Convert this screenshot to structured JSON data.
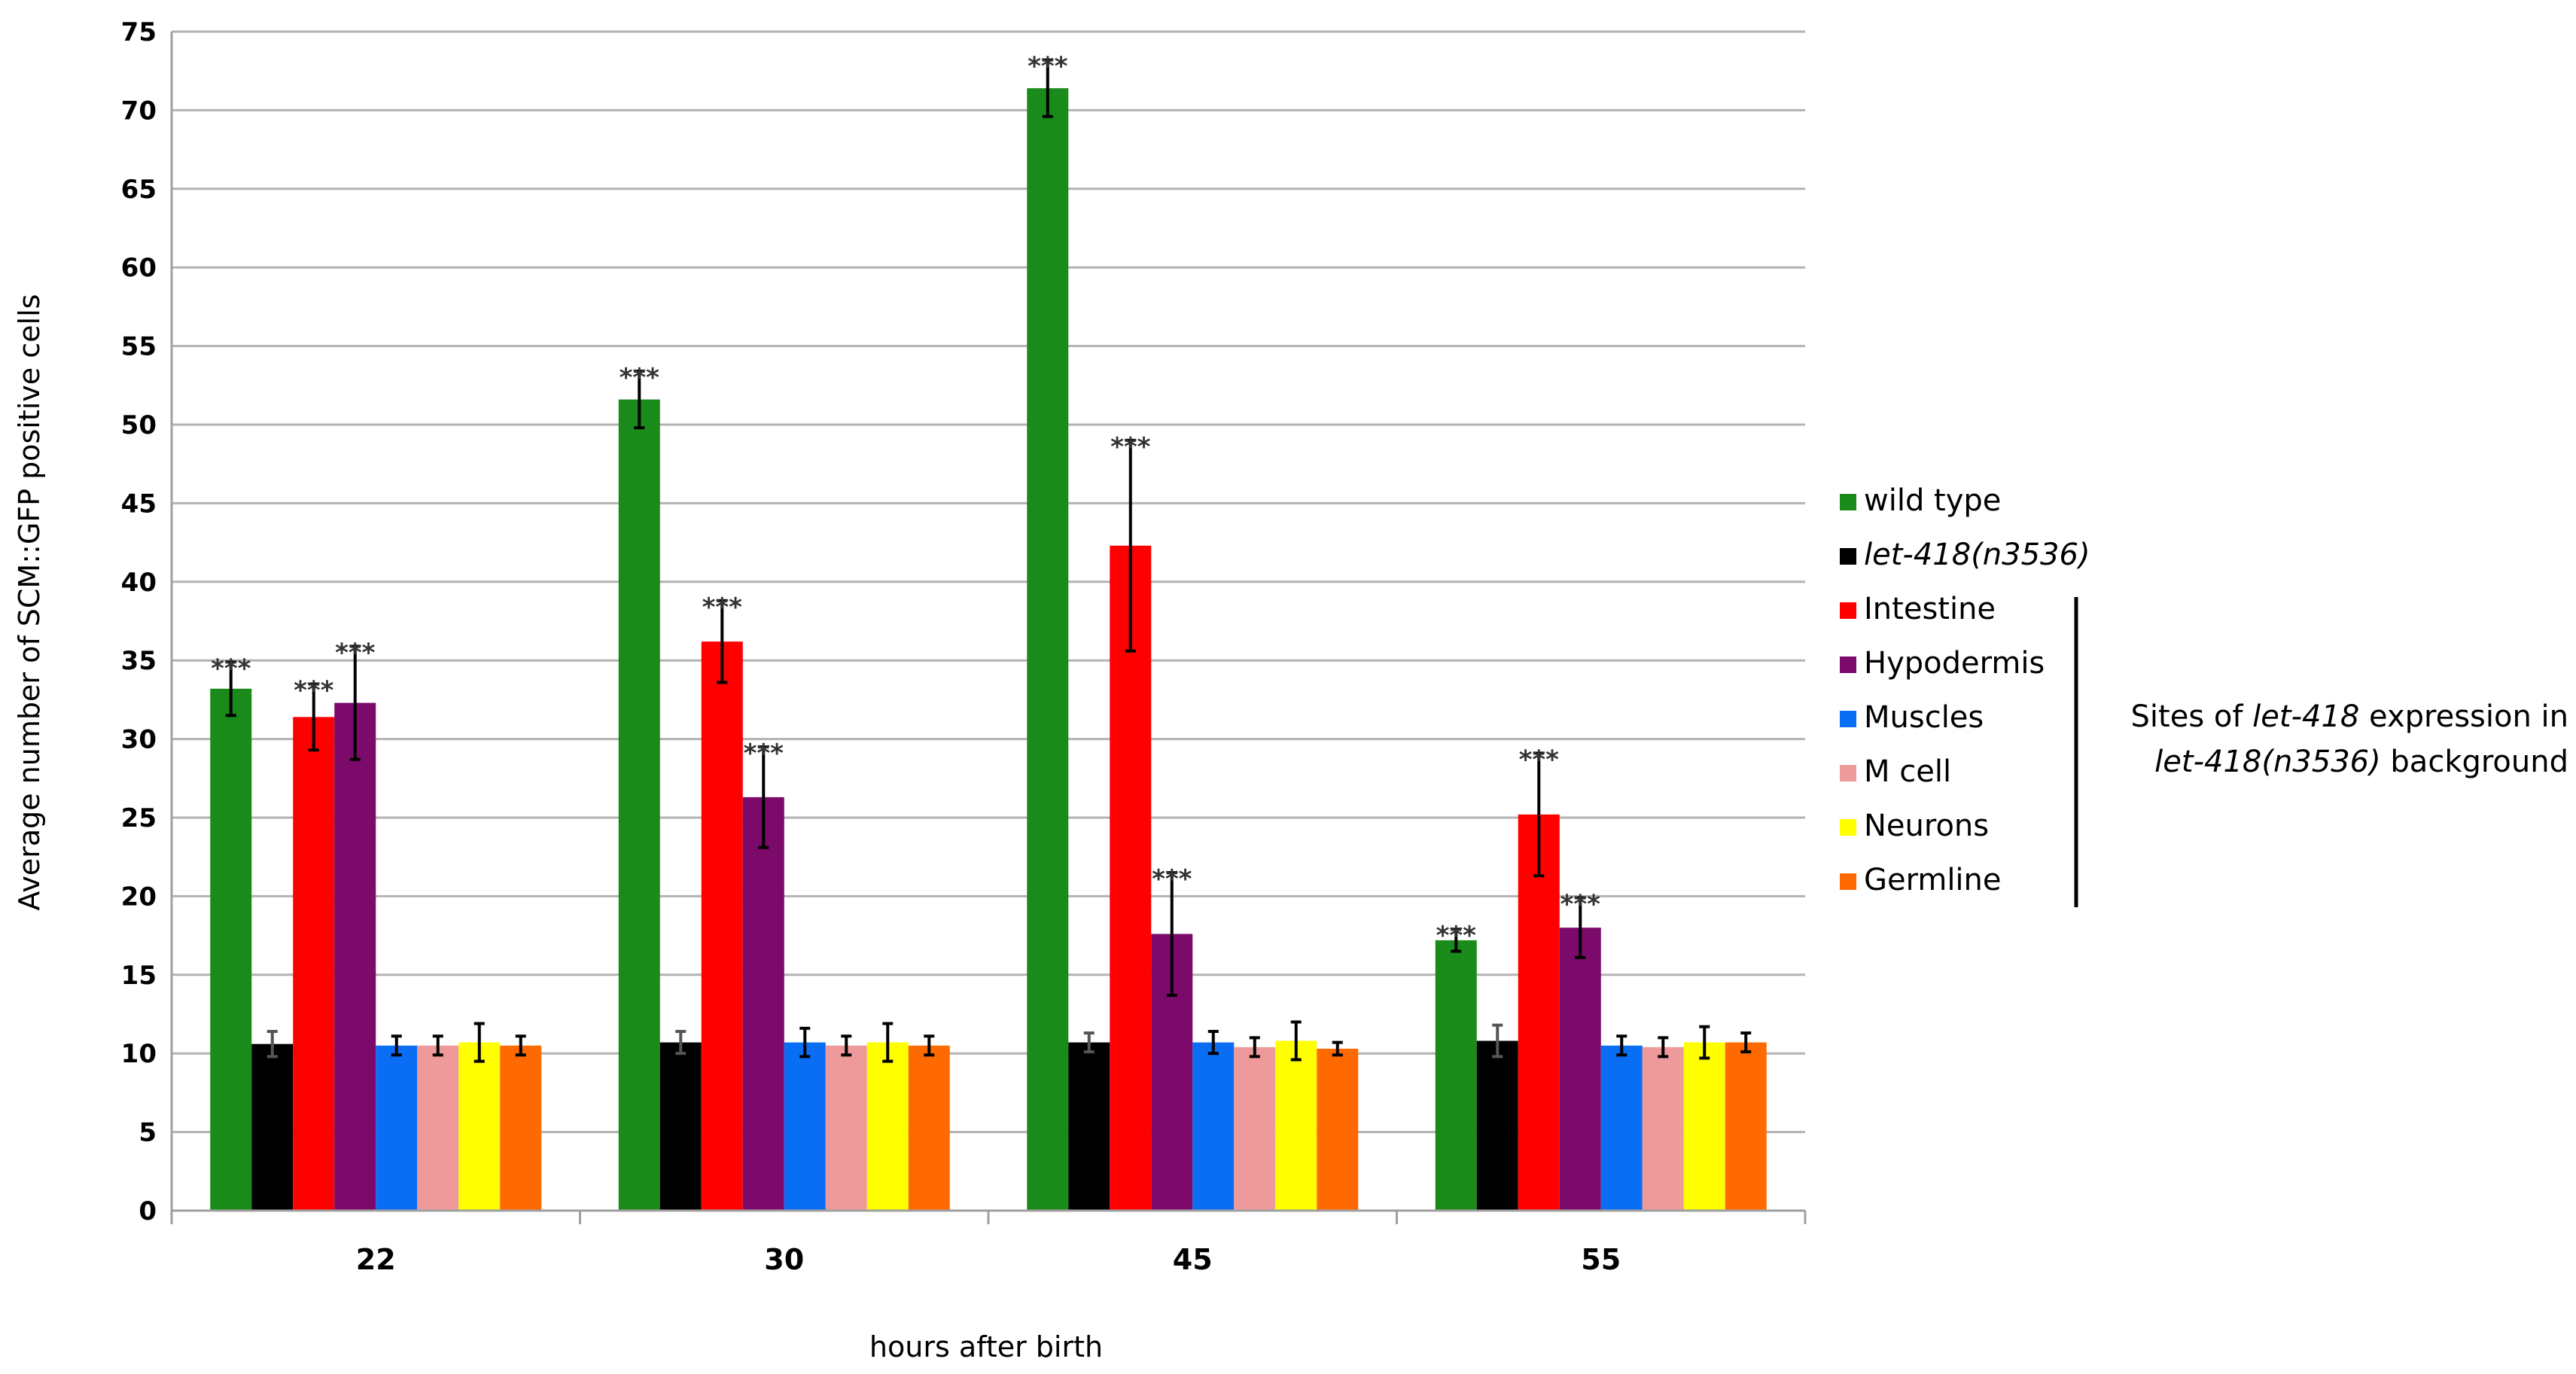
{
  "chart_data": {
    "type": "bar",
    "xlabel": "hours after birth",
    "ylabel": "Average number of SCM::GFP positive cells",
    "ylim": [
      0,
      75
    ],
    "yticks": [
      0,
      5,
      10,
      15,
      20,
      25,
      30,
      35,
      40,
      45,
      50,
      55,
      60,
      65,
      70,
      75
    ],
    "grid": true,
    "legend_position": "right",
    "categories": [
      "22",
      "30",
      "45",
      "55"
    ],
    "significance_marker": "***",
    "series": [
      {
        "name": "wild type",
        "italic": false,
        "color": "#1a8a1a",
        "values": [
          33.2,
          51.6,
          71.4,
          17.2
        ],
        "errors": [
          1.7,
          1.8,
          1.8,
          0.7
        ],
        "significant": [
          true,
          true,
          true,
          true
        ]
      },
      {
        "name": "let-418(n3536)",
        "italic": true,
        "color": "#000000",
        "values": [
          10.6,
          10.7,
          10.7,
          10.8
        ],
        "errors": [
          0.8,
          0.7,
          0.6,
          1.0
        ],
        "significant": [
          false,
          false,
          false,
          false
        ]
      },
      {
        "name": "Intestine",
        "italic": false,
        "color": "#ff0000",
        "values": [
          31.4,
          36.2,
          42.3,
          25.2
        ],
        "errors": [
          2.1,
          2.6,
          6.7,
          3.9
        ],
        "significant": [
          true,
          true,
          true,
          true
        ]
      },
      {
        "name": "Hypodermis",
        "italic": false,
        "color": "#7b0a6a",
        "values": [
          32.3,
          26.3,
          17.6,
          18.0
        ],
        "errors": [
          3.6,
          3.2,
          3.9,
          1.9
        ],
        "significant": [
          true,
          true,
          true,
          true
        ]
      },
      {
        "name": "Muscles",
        "italic": false,
        "color": "#0a6ef5",
        "values": [
          10.5,
          10.7,
          10.7,
          10.5
        ],
        "errors": [
          0.6,
          0.9,
          0.7,
          0.6
        ],
        "significant": [
          false,
          false,
          false,
          false
        ]
      },
      {
        "name": "M cell",
        "italic": false,
        "color": "#ef9a9a",
        "values": [
          10.5,
          10.5,
          10.4,
          10.4
        ],
        "errors": [
          0.6,
          0.6,
          0.6,
          0.6
        ],
        "significant": [
          false,
          false,
          false,
          false
        ]
      },
      {
        "name": "Neurons",
        "italic": false,
        "color": "#ffff00",
        "values": [
          10.7,
          10.7,
          10.8,
          10.7
        ],
        "errors": [
          1.2,
          1.2,
          1.2,
          1.0
        ],
        "significant": [
          false,
          false,
          false,
          false
        ]
      },
      {
        "name": "Germline",
        "italic": false,
        "color": "#ff6a00",
        "values": [
          10.5,
          10.5,
          10.3,
          10.7
        ],
        "errors": [
          0.6,
          0.6,
          0.4,
          0.6
        ],
        "significant": [
          false,
          false,
          false,
          false
        ]
      }
    ],
    "annotation": {
      "line1_prefix": "Sites of ",
      "line1_italic": "let-418",
      "line1_suffix": " expression in",
      "line2_italic": "let-418(n3536)",
      "line2_suffix": " background"
    }
  }
}
